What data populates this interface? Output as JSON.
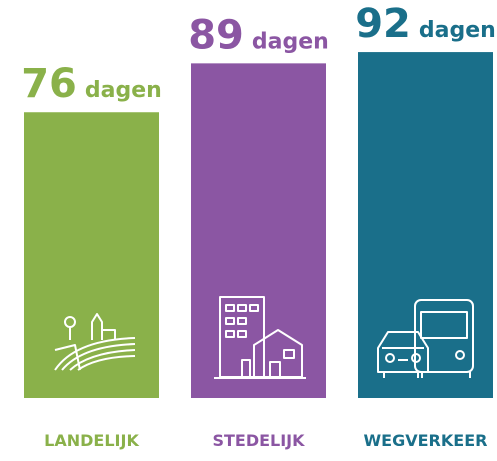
{
  "chart_data": {
    "type": "bar",
    "categories": [
      "LANDELIJK",
      "STEDELIJK",
      "WEGVERKEER"
    ],
    "values": [
      76,
      89,
      92
    ],
    "value_unit": "dagen",
    "colors": [
      "#8ab14a",
      "#8b56a3",
      "#1a6f8a"
    ]
  }
}
